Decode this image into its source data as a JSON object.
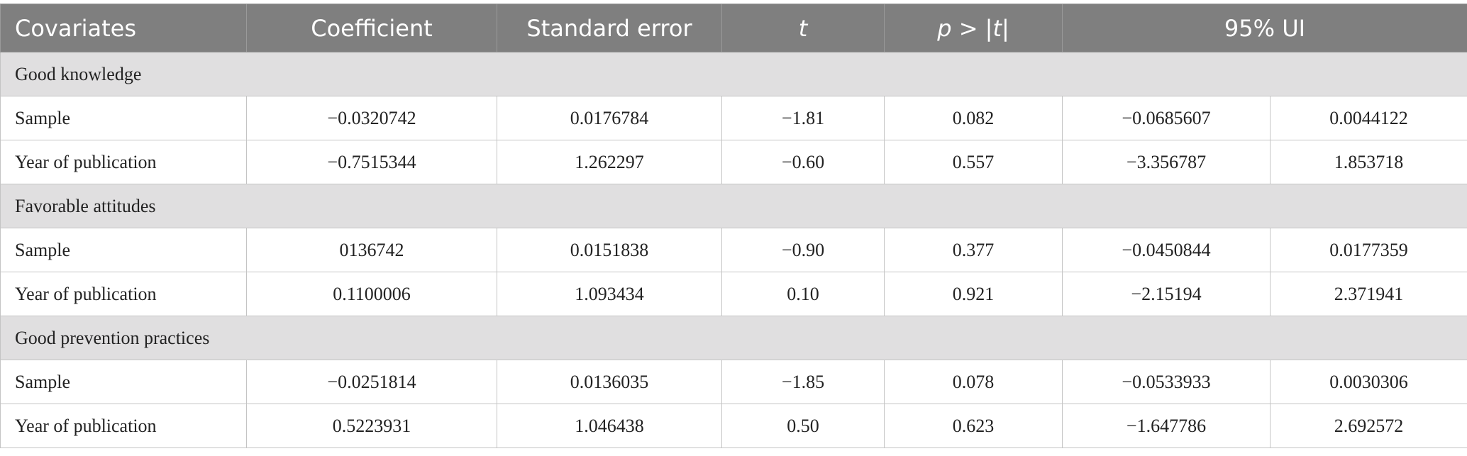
{
  "table": {
    "header": [
      "Covariates",
      "Coefficient",
      "Standard error",
      [
        "t"
      ],
      [
        "p",
        " > |",
        "t",
        "|"
      ],
      "95% UI"
    ],
    "groups": [
      {
        "label": "Good knowledge",
        "rows": [
          [
            "Sample",
            "−0.0320742",
            "0.0176784",
            "−1.81",
            "0.082",
            "−0.0685607",
            "0.0044122"
          ],
          [
            "Year of publication",
            "−0.7515344",
            "1.262297",
            "−0.60",
            "0.557",
            "−3.356787",
            "1.853718"
          ]
        ]
      },
      {
        "label": "Favorable attitudes",
        "rows": [
          [
            "Sample",
            "0136742",
            "0.0151838",
            "−0.90",
            "0.377",
            "−0.0450844",
            "0.0177359"
          ],
          [
            "Year of publication",
            "0.1100006",
            "1.093434",
            "0.10",
            "0.921",
            "−2.15194",
            "2.371941"
          ]
        ]
      },
      {
        "label": "Good prevention practices",
        "rows": [
          [
            "Sample",
            "−0.0251814",
            "0.0136035",
            "−1.85",
            "0.078",
            "−0.0533933",
            "0.0030306"
          ],
          [
            "Year of publication",
            "0.5223931",
            "1.046438",
            "0.50",
            "0.623",
            "−1.647786",
            "2.692572"
          ]
        ]
      }
    ]
  }
}
